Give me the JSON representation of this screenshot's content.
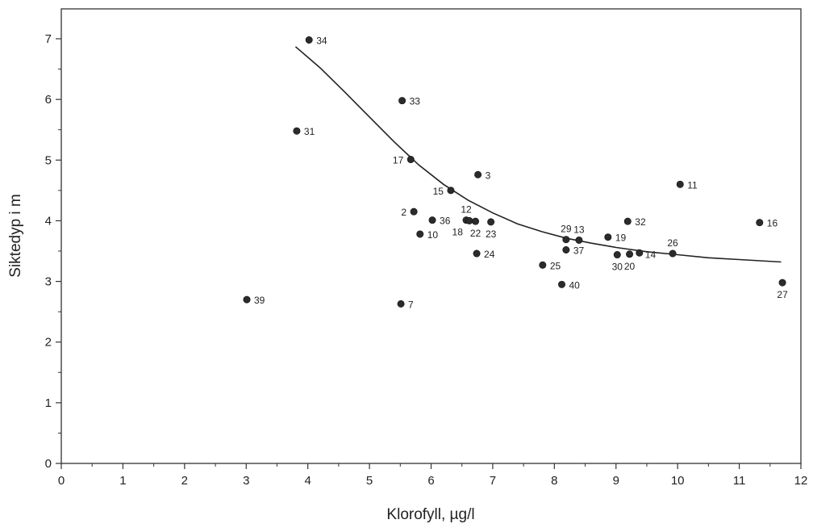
{
  "chart_data": {
    "type": "scatter",
    "xlabel": "Klorofyll, µg/l",
    "ylabel": "Siktedyp i m",
    "xlim": [
      0,
      12
    ],
    "ylim": [
      0,
      7.5
    ],
    "x_ticks": [
      0,
      1,
      2,
      3,
      4,
      5,
      6,
      7,
      8,
      9,
      10,
      11,
      12
    ],
    "y_ticks": [
      0,
      1,
      2,
      3,
      4,
      5,
      6,
      7
    ],
    "grid": false,
    "points": [
      {
        "label": "34",
        "x": 4.02,
        "y": 6.98,
        "lpos": "r"
      },
      {
        "label": "33",
        "x": 5.53,
        "y": 5.98,
        "lpos": "r"
      },
      {
        "label": "31",
        "x": 3.82,
        "y": 5.48,
        "lpos": "r"
      },
      {
        "label": "17",
        "x": 5.67,
        "y": 5.01,
        "lpos": "l"
      },
      {
        "label": "3",
        "x": 6.76,
        "y": 4.76,
        "lpos": "r"
      },
      {
        "label": "11",
        "x": 10.04,
        "y": 4.6,
        "lpos": "r"
      },
      {
        "label": "15",
        "x": 6.32,
        "y": 4.5,
        "lpos": "l"
      },
      {
        "label": "2",
        "x": 5.72,
        "y": 4.15,
        "lpos": "l"
      },
      {
        "label": "36",
        "x": 6.02,
        "y": 4.01,
        "lpos": "r"
      },
      {
        "label": "12",
        "x": 6.57,
        "y": 4.01,
        "lpos": "t"
      },
      {
        "label": "18",
        "x": 6.62,
        "y": 4.0,
        "lpos": "bl"
      },
      {
        "label": "22",
        "x": 6.72,
        "y": 3.99,
        "lpos": "b"
      },
      {
        "label": "23",
        "x": 6.97,
        "y": 3.98,
        "lpos": "b"
      },
      {
        "label": "32",
        "x": 9.19,
        "y": 3.99,
        "lpos": "r"
      },
      {
        "label": "16",
        "x": 11.33,
        "y": 3.97,
        "lpos": "r"
      },
      {
        "label": "10",
        "x": 5.82,
        "y": 3.78,
        "lpos": "r"
      },
      {
        "label": "19",
        "x": 8.87,
        "y": 3.73,
        "lpos": "r"
      },
      {
        "label": "29",
        "x": 8.19,
        "y": 3.69,
        "lpos": "t"
      },
      {
        "label": "13",
        "x": 8.4,
        "y": 3.68,
        "lpos": "t"
      },
      {
        "label": "37",
        "x": 8.19,
        "y": 3.52,
        "lpos": "r"
      },
      {
        "label": "24",
        "x": 6.74,
        "y": 3.46,
        "lpos": "r"
      },
      {
        "label": "26",
        "x": 9.92,
        "y": 3.46,
        "lpos": "t"
      },
      {
        "label": "14",
        "x": 9.38,
        "y": 3.47,
        "lpos": "br"
      },
      {
        "label": "20",
        "x": 9.22,
        "y": 3.45,
        "lpos": "b"
      },
      {
        "label": "30",
        "x": 9.02,
        "y": 3.44,
        "lpos": "b"
      },
      {
        "label": "25",
        "x": 7.81,
        "y": 3.27,
        "lpos": "r"
      },
      {
        "label": "27",
        "x": 11.7,
        "y": 2.98,
        "lpos": "b"
      },
      {
        "label": "40",
        "x": 8.12,
        "y": 2.95,
        "lpos": "r"
      },
      {
        "label": "39",
        "x": 3.01,
        "y": 2.7,
        "lpos": "r"
      },
      {
        "label": "7",
        "x": 5.51,
        "y": 2.63,
        "lpos": "r"
      }
    ],
    "fit_line": [
      {
        "x": 3.8,
        "y": 6.87
      },
      {
        "x": 4.2,
        "y": 6.52
      },
      {
        "x": 4.6,
        "y": 6.12
      },
      {
        "x": 5.0,
        "y": 5.71
      },
      {
        "x": 5.4,
        "y": 5.3
      },
      {
        "x": 5.8,
        "y": 4.92
      },
      {
        "x": 6.2,
        "y": 4.6
      },
      {
        "x": 6.6,
        "y": 4.34
      },
      {
        "x": 7.0,
        "y": 4.13
      },
      {
        "x": 7.4,
        "y": 3.95
      },
      {
        "x": 7.8,
        "y": 3.82
      },
      {
        "x": 8.2,
        "y": 3.71
      },
      {
        "x": 8.6,
        "y": 3.63
      },
      {
        "x": 9.0,
        "y": 3.56
      },
      {
        "x": 9.5,
        "y": 3.49
      },
      {
        "x": 10.0,
        "y": 3.44
      },
      {
        "x": 10.5,
        "y": 3.39
      },
      {
        "x": 11.0,
        "y": 3.36
      },
      {
        "x": 11.68,
        "y": 3.32
      }
    ]
  }
}
